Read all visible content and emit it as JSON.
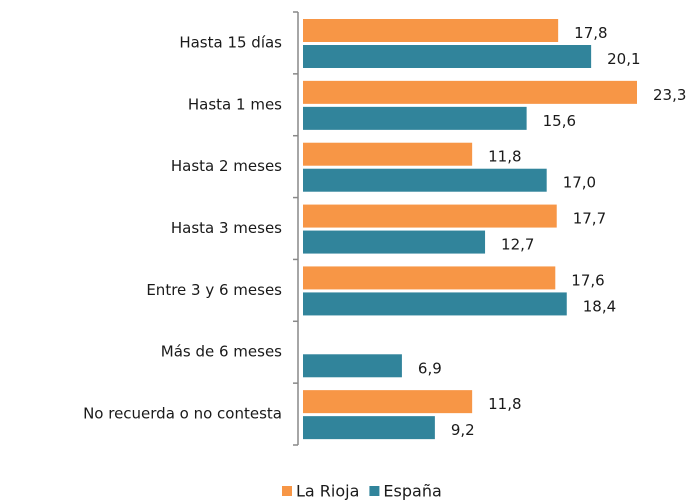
{
  "chart_data": {
    "type": "bar",
    "orientation": "horizontal",
    "categories": [
      "Hasta 15 días",
      "Hasta 1 mes",
      "Hasta 2 meses",
      "Hasta 3 meses",
      "Entre 3 y 6 meses",
      "Más de 6 meses",
      "No recuerda o no contesta"
    ],
    "series": [
      {
        "name": "La Rioja",
        "color": "#f79646",
        "values": [
          17.8,
          23.3,
          11.8,
          17.7,
          17.6,
          null,
          11.8
        ],
        "value_labels": [
          "17,8",
          "23,3",
          "11,8",
          "17,7",
          "17,6",
          null,
          "11,8"
        ]
      },
      {
        "name": "España",
        "color": "#31849b",
        "values": [
          20.1,
          15.6,
          17.0,
          12.7,
          18.4,
          6.9,
          9.2
        ],
        "value_labels": [
          "20,1",
          "15,6",
          "17,0",
          "12,7",
          "18,4",
          "6,9",
          "9,2"
        ]
      }
    ],
    "legend": "bottom"
  }
}
